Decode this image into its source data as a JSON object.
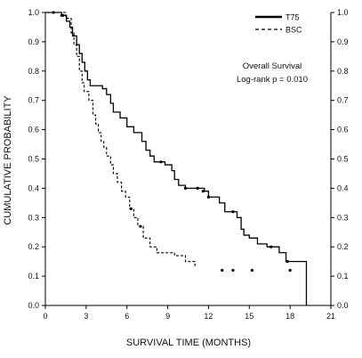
{
  "chart_data": {
    "type": "line",
    "subtype": "kaplan-meier step",
    "xlabel": "SURVIVAL TIME (MONTHS)",
    "ylabel": "CUMULATIVE PROBABILITY",
    "xlim": [
      0,
      21
    ],
    "ylim": [
      0,
      1
    ],
    "x_ticks": [
      "0",
      "3",
      "6",
      "9",
      "12",
      "15",
      "18",
      "21"
    ],
    "y_ticks": [
      "0.0",
      "0.1",
      "0.2",
      "0.3",
      "0.4",
      "0.5",
      "0.6",
      "0.7",
      "0.8",
      "0.9",
      "1.0"
    ],
    "right_axis_mirrored": true,
    "grid": false,
    "legend_position": "top-right",
    "annotation": {
      "line1": "Overall Survival",
      "line2": "Log-rank  p = 0.010"
    },
    "series": [
      {
        "name": "T75",
        "line_style": "solid",
        "steps": [
          [
            0,
            1.0
          ],
          [
            1.2,
            0.99
          ],
          [
            1.55,
            0.97
          ],
          [
            1.8,
            0.95
          ],
          [
            2.0,
            0.92
          ],
          [
            2.3,
            0.89
          ],
          [
            2.5,
            0.86
          ],
          [
            2.7,
            0.83
          ],
          [
            2.9,
            0.8
          ],
          [
            3.1,
            0.77
          ],
          [
            3.3,
            0.75
          ],
          [
            4.2,
            0.74
          ],
          [
            4.5,
            0.72
          ],
          [
            4.8,
            0.69
          ],
          [
            5.0,
            0.66
          ],
          [
            5.5,
            0.64
          ],
          [
            6.0,
            0.61
          ],
          [
            6.5,
            0.59
          ],
          [
            7.1,
            0.56
          ],
          [
            7.4,
            0.53
          ],
          [
            7.7,
            0.51
          ],
          [
            8.0,
            0.49
          ],
          [
            8.8,
            0.48
          ],
          [
            9.3,
            0.46
          ],
          [
            9.5,
            0.43
          ],
          [
            9.8,
            0.41
          ],
          [
            10.3,
            0.4
          ],
          [
            11.7,
            0.39
          ],
          [
            12.0,
            0.37
          ],
          [
            12.8,
            0.35
          ],
          [
            13.2,
            0.32
          ],
          [
            14.1,
            0.3
          ],
          [
            14.4,
            0.26
          ],
          [
            14.6,
            0.24
          ],
          [
            15.0,
            0.23
          ],
          [
            15.6,
            0.21
          ],
          [
            16.3,
            0.2
          ],
          [
            17.2,
            0.18
          ],
          [
            17.7,
            0.15
          ],
          [
            19.2,
            0.0
          ]
        ],
        "censor": [
          [
            0.6,
            1.0
          ],
          [
            1.3,
            0.99
          ],
          [
            8.5,
            0.49
          ],
          [
            10.3,
            0.4
          ],
          [
            11.2,
            0.4
          ],
          [
            11.6,
            0.39
          ],
          [
            12.0,
            0.37
          ],
          [
            13.8,
            0.32
          ],
          [
            16.6,
            0.2
          ],
          [
            17.8,
            0.15
          ]
        ]
      },
      {
        "name": "BSC",
        "line_style": "dashed",
        "steps": [
          [
            0,
            1.0
          ],
          [
            1.5,
            0.98
          ],
          [
            1.9,
            0.93
          ],
          [
            2.1,
            0.89
          ],
          [
            2.3,
            0.85
          ],
          [
            2.5,
            0.8
          ],
          [
            2.7,
            0.76
          ],
          [
            2.85,
            0.73
          ],
          [
            3.2,
            0.7
          ],
          [
            3.5,
            0.65
          ],
          [
            3.7,
            0.62
          ],
          [
            3.9,
            0.59
          ],
          [
            4.1,
            0.56
          ],
          [
            4.3,
            0.54
          ],
          [
            4.5,
            0.51
          ],
          [
            4.8,
            0.48
          ],
          [
            5.0,
            0.45
          ],
          [
            5.3,
            0.42
          ],
          [
            5.6,
            0.39
          ],
          [
            5.9,
            0.37
          ],
          [
            6.2,
            0.33
          ],
          [
            6.5,
            0.3
          ],
          [
            6.8,
            0.27
          ],
          [
            7.2,
            0.23
          ],
          [
            7.7,
            0.2
          ],
          [
            8.2,
            0.18
          ],
          [
            9.5,
            0.17
          ],
          [
            10.3,
            0.15
          ],
          [
            11.0,
            0.13
          ]
        ],
        "censor": [
          [
            1.2,
            0.99
          ],
          [
            6.3,
            0.33
          ],
          [
            7.0,
            0.27
          ],
          [
            13.0,
            0.12
          ],
          [
            13.8,
            0.12
          ],
          [
            15.2,
            0.12
          ],
          [
            18.0,
            0.12
          ]
        ]
      }
    ]
  }
}
